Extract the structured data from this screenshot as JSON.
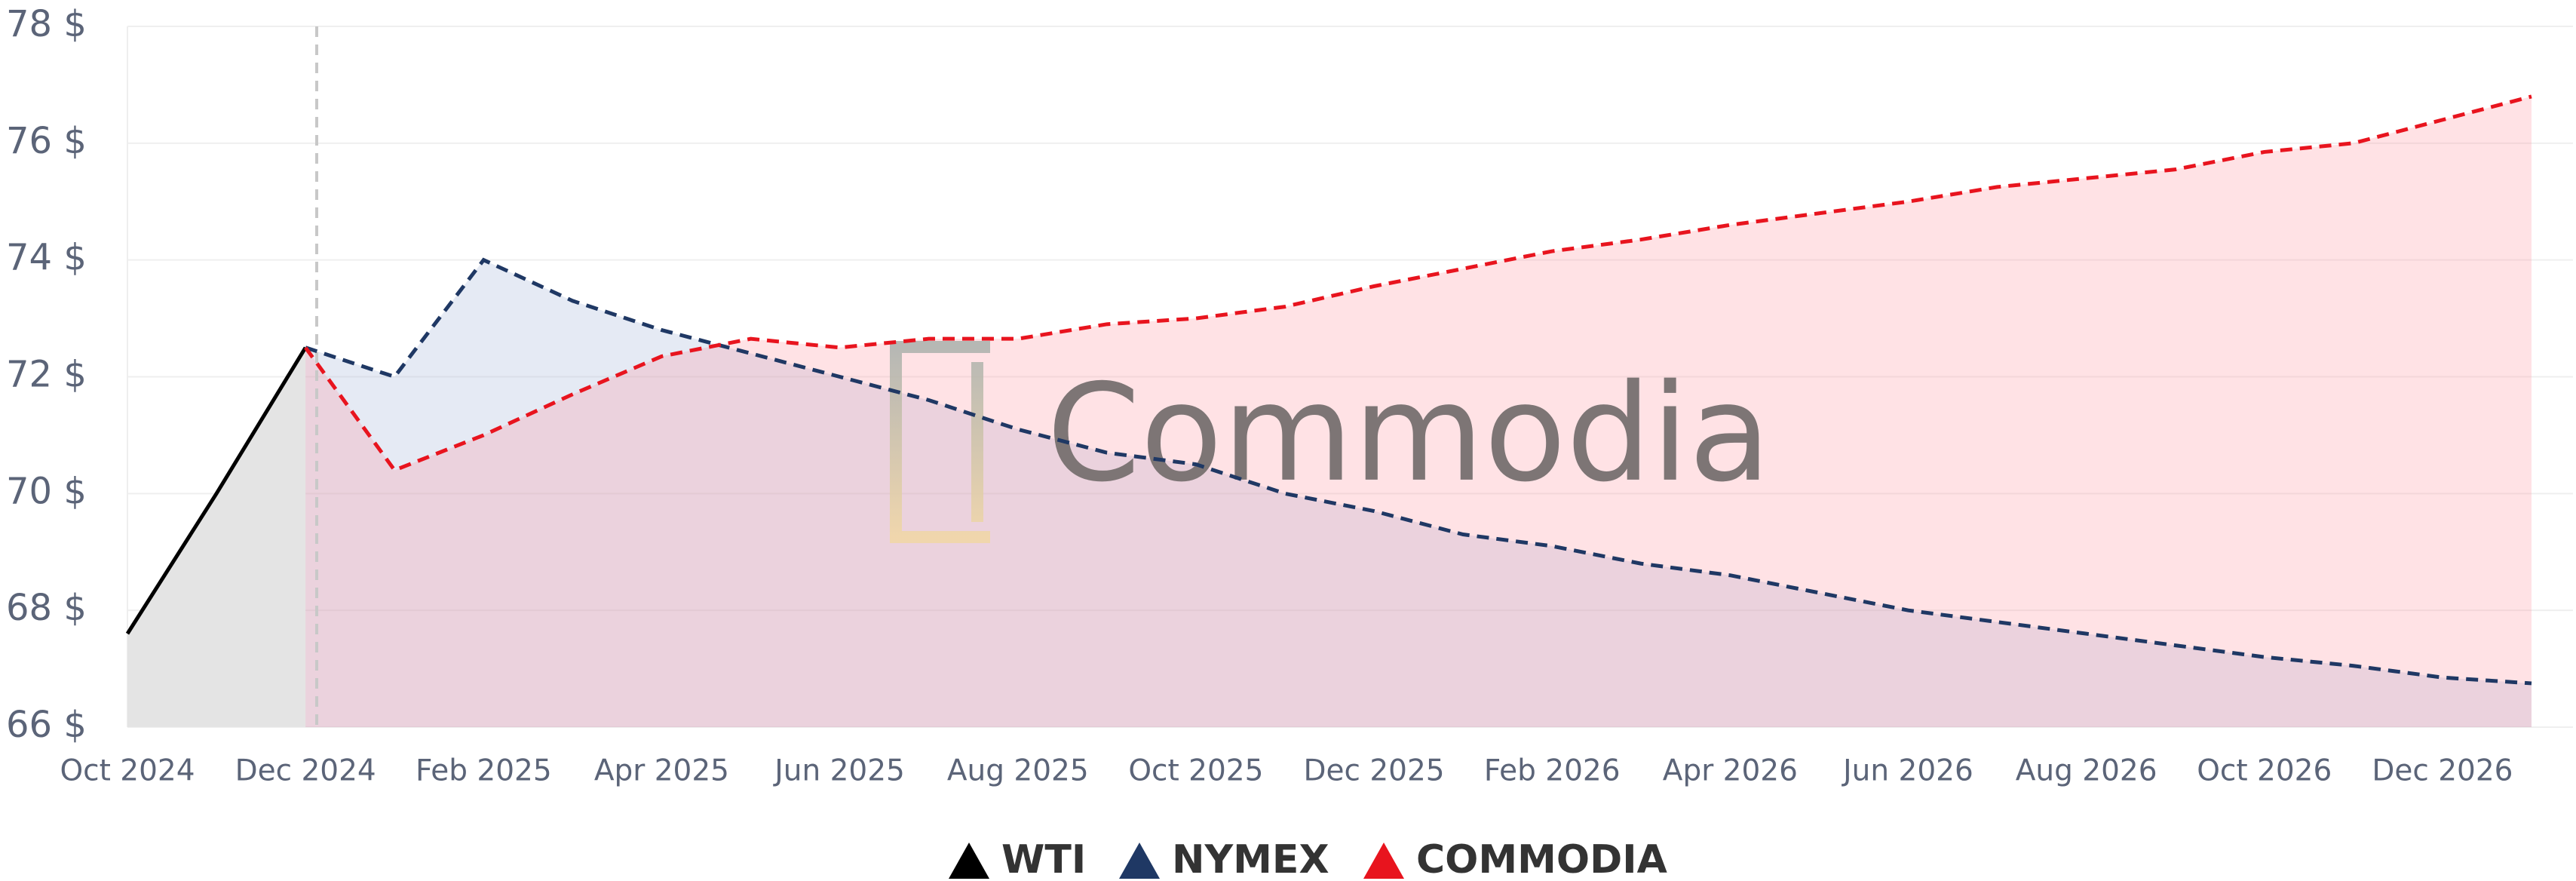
{
  "chart_data": {
    "type": "line",
    "categories": [
      "Oct 2024",
      null,
      "Dec 2024",
      null,
      "Feb 2025",
      null,
      "Apr 2025",
      null,
      "Jun 2025",
      null,
      "Aug 2025",
      null,
      "Oct 2025",
      null,
      "Dec 2025",
      null,
      "Feb 2026",
      null,
      "Apr 2026",
      null,
      "Jun 2026",
      null,
      "Aug 2026",
      null,
      "Oct 2026",
      null,
      "Dec 2026",
      null
    ],
    "series": [
      {
        "name": "WTI",
        "color": "#000000",
        "fill": "#e4e4e4",
        "dashed": false,
        "values": [
          67.6,
          70.0,
          72.5,
          null,
          null,
          null,
          null,
          null,
          null,
          null,
          null,
          null,
          null,
          null,
          null,
          null,
          null,
          null,
          null,
          null,
          null,
          null,
          null,
          null,
          null,
          null,
          null,
          null
        ]
      },
      {
        "name": "NYMEX",
        "color": "#1f3864",
        "fill": "rgba(170,185,220,0.3)",
        "dashed": true,
        "values": [
          null,
          null,
          72.5,
          72.0,
          74.0,
          73.3,
          72.8,
          72.4,
          72.0,
          71.6,
          71.1,
          70.7,
          70.5,
          70.0,
          69.7,
          69.3,
          69.1,
          68.8,
          68.6,
          68.3,
          68.0,
          67.8,
          67.6,
          67.4,
          67.2,
          67.05,
          66.85,
          66.75
        ]
      },
      {
        "name": "COMMODIA",
        "color": "#e8141e",
        "fill": "rgba(255,140,150,0.25)",
        "dashed": true,
        "values": [
          null,
          null,
          72.5,
          70.4,
          71.0,
          71.7,
          72.35,
          72.65,
          72.5,
          72.65,
          72.65,
          72.9,
          73.0,
          73.2,
          73.55,
          73.85,
          74.15,
          74.35,
          74.6,
          74.8,
          75.0,
          75.25,
          75.4,
          75.55,
          75.85,
          76.0,
          76.4,
          76.8
        ]
      }
    ],
    "ylim": [
      66,
      78
    ],
    "yticks": [
      {
        "value": 66,
        "label": "66 $"
      },
      {
        "value": 68,
        "label": "68 $"
      },
      {
        "value": 70,
        "label": "70 $"
      },
      {
        "value": 72,
        "label": "72 $"
      },
      {
        "value": 74,
        "label": "74 $"
      },
      {
        "value": 76,
        "label": "76 $"
      },
      {
        "value": 78,
        "label": "78 $"
      }
    ],
    "grid": true,
    "watermark": "Commodia"
  }
}
